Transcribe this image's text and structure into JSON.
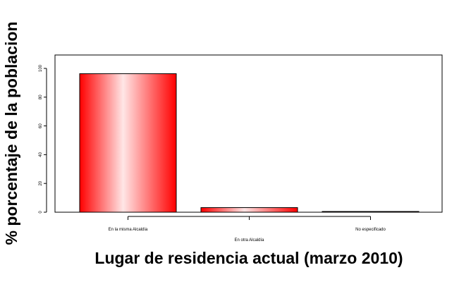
{
  "chart_data": {
    "type": "bar",
    "title": "",
    "xlabel": "Lugar de residencia actual (marzo 2010)",
    "ylabel": "% porcentaje de la poblacion",
    "categories": [
      "En la misma Alcaldía",
      "En otra Alcaldía",
      "No especificado"
    ],
    "values": [
      96.3,
      3.2,
      0.5
    ],
    "ylim": [
      0,
      100
    ],
    "yticks": [
      0,
      20,
      40,
      60,
      80,
      100
    ],
    "grid": false,
    "legend": "none",
    "colors": {
      "bar_edge": "#ff0000",
      "bar_center": "#ffe6e6",
      "bar_outline": "#000000",
      "frame": "#000000",
      "background": "#ffffff"
    }
  }
}
